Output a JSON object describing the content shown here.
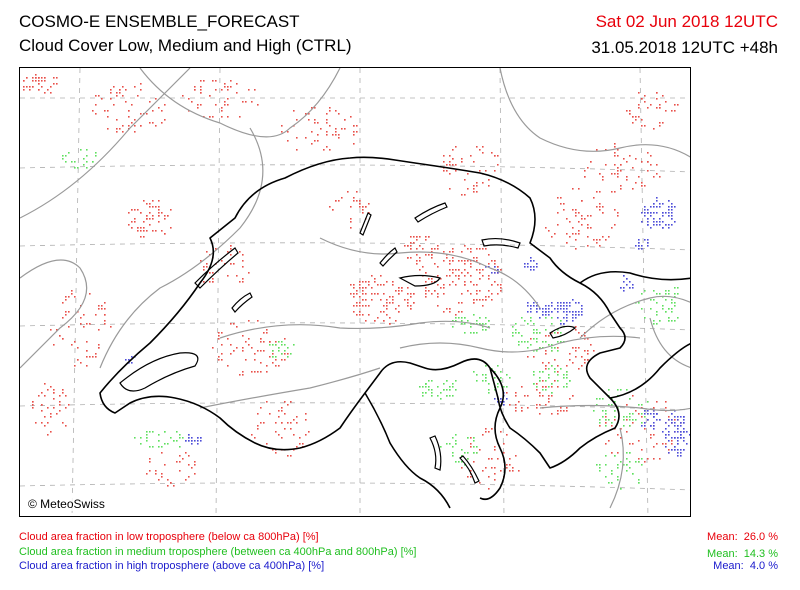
{
  "header": {
    "title": "COSMO-E ENSEMBLE_FORECAST",
    "subtitle": "Cloud Cover Low, Medium and High (CTRL)",
    "valid_time": "Sat 02 Jun 2018 12UTC",
    "run_info": "31.05.2018 12UTC +48h"
  },
  "map": {
    "copyright": "© MeteoSwiss"
  },
  "legend": [
    {
      "label": "Cloud area fraction in low troposphere (below ca 800hPa) [%]",
      "mean_label": "Mean:",
      "mean_value": "26.0 %",
      "color": "#e8000b"
    },
    {
      "label": "Cloud area fraction in medium troposphere (between ca 400hPa and 800hPa) [%]",
      "mean_label": "Mean:",
      "mean_value": "14.3 %",
      "color": "#1fdf1f"
    },
    {
      "label": "Cloud area fraction in high troposphere (above ca 400hPa) [%]",
      "mean_label": "Mean:",
      "mean_value": "4.0 %",
      "color": "#1a1acc"
    }
  ],
  "colors": {
    "low_cloud": "#e8504a",
    "medium_cloud": "#5fe05f",
    "high_cloud": "#4d4dd8",
    "border": "#000000",
    "grid": "#aaaaaa",
    "valid_time": "#e8000b"
  }
}
